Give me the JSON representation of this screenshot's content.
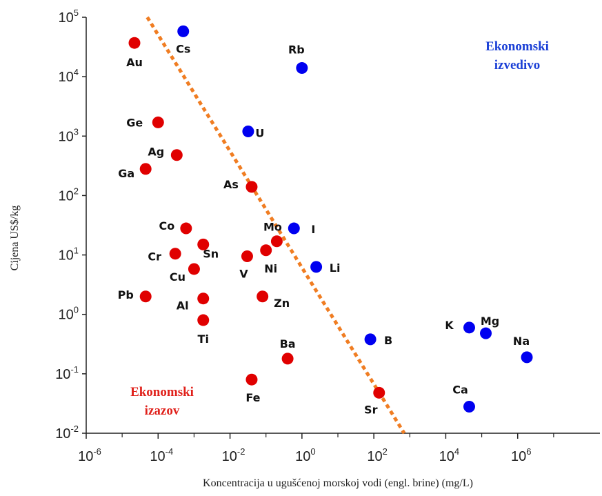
{
  "chart_data": {
    "type": "scatter",
    "x_scale": "log",
    "y_scale": "log",
    "xlim": [
      1e-06,
      100000000.0
    ],
    "ylim": [
      0.01,
      100000.0
    ],
    "xlabel": "Koncentracija u ugušćenoj  morskoj vodi (engl. brine) (mg/L)",
    "ylabel": "Cijena US$/kg",
    "x_ticks": [
      {
        "base": "10",
        "exp": "-6",
        "value": 1e-06
      },
      {
        "base": "10",
        "exp": "-4",
        "value": 0.0001
      },
      {
        "base": "10",
        "exp": "-2",
        "value": 0.01
      },
      {
        "base": "10",
        "exp": "0",
        "value": 1
      },
      {
        "base": "10",
        "exp": "2",
        "value": 100
      },
      {
        "base": "10",
        "exp": "4",
        "value": 10000.0
      },
      {
        "base": "10",
        "exp": "6",
        "value": 1000000.0
      }
    ],
    "y_ticks": [
      {
        "base": "10",
        "exp": "5",
        "value": 100000.0
      },
      {
        "base": "10",
        "exp": "4",
        "value": 10000.0
      },
      {
        "base": "10",
        "exp": "3",
        "value": 1000.0
      },
      {
        "base": "10",
        "exp": "2",
        "value": 100
      },
      {
        "base": "10",
        "exp": "1",
        "value": 10
      },
      {
        "base": "10",
        "exp": "0",
        "value": 1
      },
      {
        "base": "10",
        "exp": "-1",
        "value": 0.1
      },
      {
        "base": "10",
        "exp": "-2",
        "value": 0.01
      }
    ],
    "grid": false,
    "series": [
      {
        "name": "Ekonomski izazov",
        "color": "#e00000",
        "points": [
          {
            "label": "Au",
            "x": 2.2e-05,
            "y": 37000
          },
          {
            "label": "Ge",
            "x": 0.0001,
            "y": 1700
          },
          {
            "label": "Ag",
            "x": 0.00033,
            "y": 480
          },
          {
            "label": "Ga",
            "x": 4.5e-05,
            "y": 280
          },
          {
            "label": "As",
            "x": 0.04,
            "y": 140
          },
          {
            "label": "Co",
            "x": 0.0006,
            "y": 28
          },
          {
            "label": "Sn",
            "x": 0.0018,
            "y": 15
          },
          {
            "label": "Mo",
            "x": 0.2,
            "y": 17
          },
          {
            "label": "Ni",
            "x": 0.1,
            "y": 12
          },
          {
            "label": "V",
            "x": 0.03,
            "y": 9.5
          },
          {
            "label": "Cr",
            "x": 0.0003,
            "y": 10.5
          },
          {
            "label": "Cu",
            "x": 0.001,
            "y": 5.8
          },
          {
            "label": "Pb",
            "x": 4.5e-05,
            "y": 2.0
          },
          {
            "label": "Al",
            "x": 0.0018,
            "y": 1.85
          },
          {
            "label": "Zn",
            "x": 0.08,
            "y": 2.0
          },
          {
            "label": "Ti",
            "x": 0.0018,
            "y": 0.8
          },
          {
            "label": "Ba",
            "x": 0.4,
            "y": 0.18
          },
          {
            "label": "Fe",
            "x": 0.04,
            "y": 0.08
          },
          {
            "label": "Sr",
            "x": 140,
            "y": 0.048
          }
        ]
      },
      {
        "name": "Ekonomski izvedivo",
        "color": "#0000f0",
        "points": [
          {
            "label": "Cs",
            "x": 0.0005,
            "y": 58000
          },
          {
            "label": "Rb",
            "x": 1.0,
            "y": 14000
          },
          {
            "label": "U",
            "x": 0.032,
            "y": 1200
          },
          {
            "label": "I",
            "x": 0.6,
            "y": 28
          },
          {
            "label": "Li",
            "x": 2.5,
            "y": 6.3
          },
          {
            "label": "B",
            "x": 80,
            "y": 0.38
          },
          {
            "label": "K",
            "x": 45000,
            "y": 0.6
          },
          {
            "label": "Mg",
            "x": 130000,
            "y": 0.48
          },
          {
            "label": "Na",
            "x": 1800000.0,
            "y": 0.19
          },
          {
            "label": "Ca",
            "x": 45000,
            "y": 0.028
          }
        ]
      }
    ],
    "boundary_line": {
      "color": "#f07d22",
      "style": "dotted",
      "from": {
        "x": 5e-05,
        "y": 100000
      },
      "to": {
        "x": 700,
        "y": 0.01
      }
    },
    "annotations": [
      {
        "key": "izvedivo",
        "lines": [
          "Ekonomski",
          "izvedivo"
        ],
        "color": "#1a3fd6"
      },
      {
        "key": "izazov",
        "lines": [
          "Ekonomski",
          "izazov"
        ],
        "color": "#e0201a"
      }
    ]
  }
}
